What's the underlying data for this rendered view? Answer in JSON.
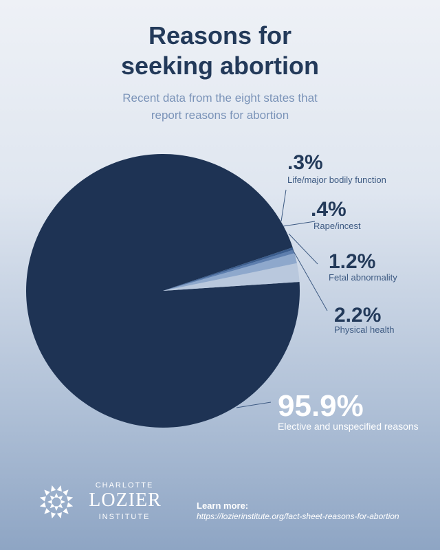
{
  "header": {
    "title_line1": "Reasons for",
    "title_line2": "seeking abortion",
    "subtitle_line1": "Recent data from the eight states that",
    "subtitle_line2": "report reasons for abortion"
  },
  "chart_data": {
    "type": "pie",
    "title": "Reasons for seeking abortion",
    "subtitle": "Recent data from the eight states that report reasons for abortion",
    "slices": [
      {
        "label": "Elective and unspecified reasons",
        "value_label": "95.9%",
        "value": 95.9,
        "color": "#1e3354"
      },
      {
        "label": "Physical health",
        "value_label": "2.2%",
        "value": 2.2,
        "color": "#b9c8dd"
      },
      {
        "label": "Fetal abnormality",
        "value_label": "1.2%",
        "value": 1.2,
        "color": "#8ea8cc"
      },
      {
        "label": "Rape/incest",
        "value_label": ".4%",
        "value": 0.4,
        "color": "#5d7eae"
      },
      {
        "label": "Life/major bodily function",
        "value_label": ".3%",
        "value": 0.3,
        "color": "#3b5d8e"
      }
    ],
    "colors": {
      "main_label": "#ffffff",
      "small_value": "#233a5a",
      "small_desc": "#3d5a82",
      "leader": "#3d5a82"
    }
  },
  "footer": {
    "brand_top": "CHARLOTTE",
    "brand_name": "LOZIER",
    "brand_bottom": "INSTITUTE",
    "learn_label": "Learn more:",
    "learn_url": "https://lozierinstitute.org/fact-sheet-reasons-for-abortion"
  }
}
